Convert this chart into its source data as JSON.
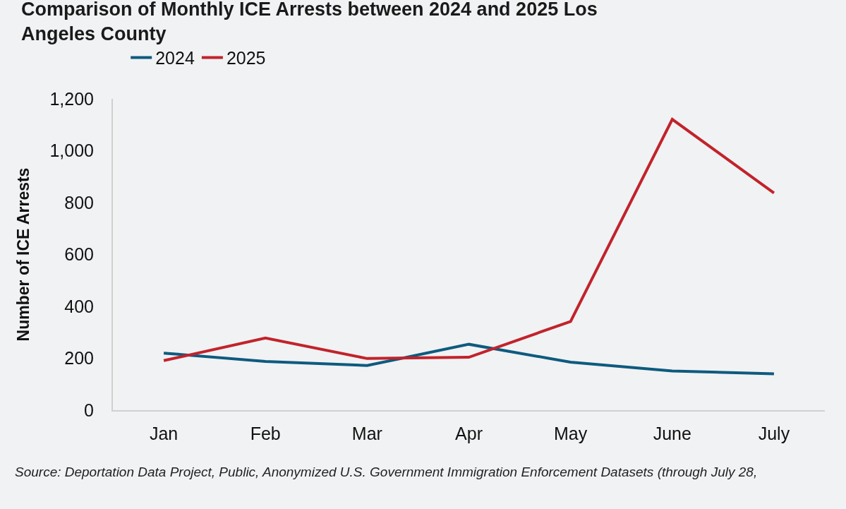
{
  "chart_data": {
    "type": "line",
    "title": "Comparison of Monthly ICE Arrests between 2024 and 2025 Los Angeles County",
    "ylabel": "Number of ICE Arrests",
    "categories": [
      "Jan",
      "Feb",
      "Mar",
      "Apr",
      "May",
      "June",
      "July"
    ],
    "series": [
      {
        "name": "2024",
        "color": "#0e5a7e",
        "values": [
          220,
          188,
          172,
          254,
          185,
          151,
          140
        ]
      },
      {
        "name": "2025",
        "color": "#c1232b",
        "values": [
          191,
          278,
          199,
          204,
          342,
          1121,
          837
        ]
      }
    ],
    "ylim": [
      0,
      1200
    ],
    "yticks": [
      0,
      {
        "value": 200,
        "label": "200"
      },
      {
        "value": 400,
        "label": "400"
      },
      {
        "value": 600,
        "label": "600"
      },
      {
        "value": 800,
        "label": "800"
      },
      {
        "value": 1000,
        "label": "1,000"
      },
      {
        "value": 1200,
        "label": "1,200"
      }
    ],
    "grid": false,
    "legend": "top left",
    "marker": "none",
    "line_style": "solid",
    "annotations": [
      "Source: Deportation Data Project, Public, Anonymized U.S. Government Immigration Enforcement Datasets (through July 28,"
    ]
  }
}
